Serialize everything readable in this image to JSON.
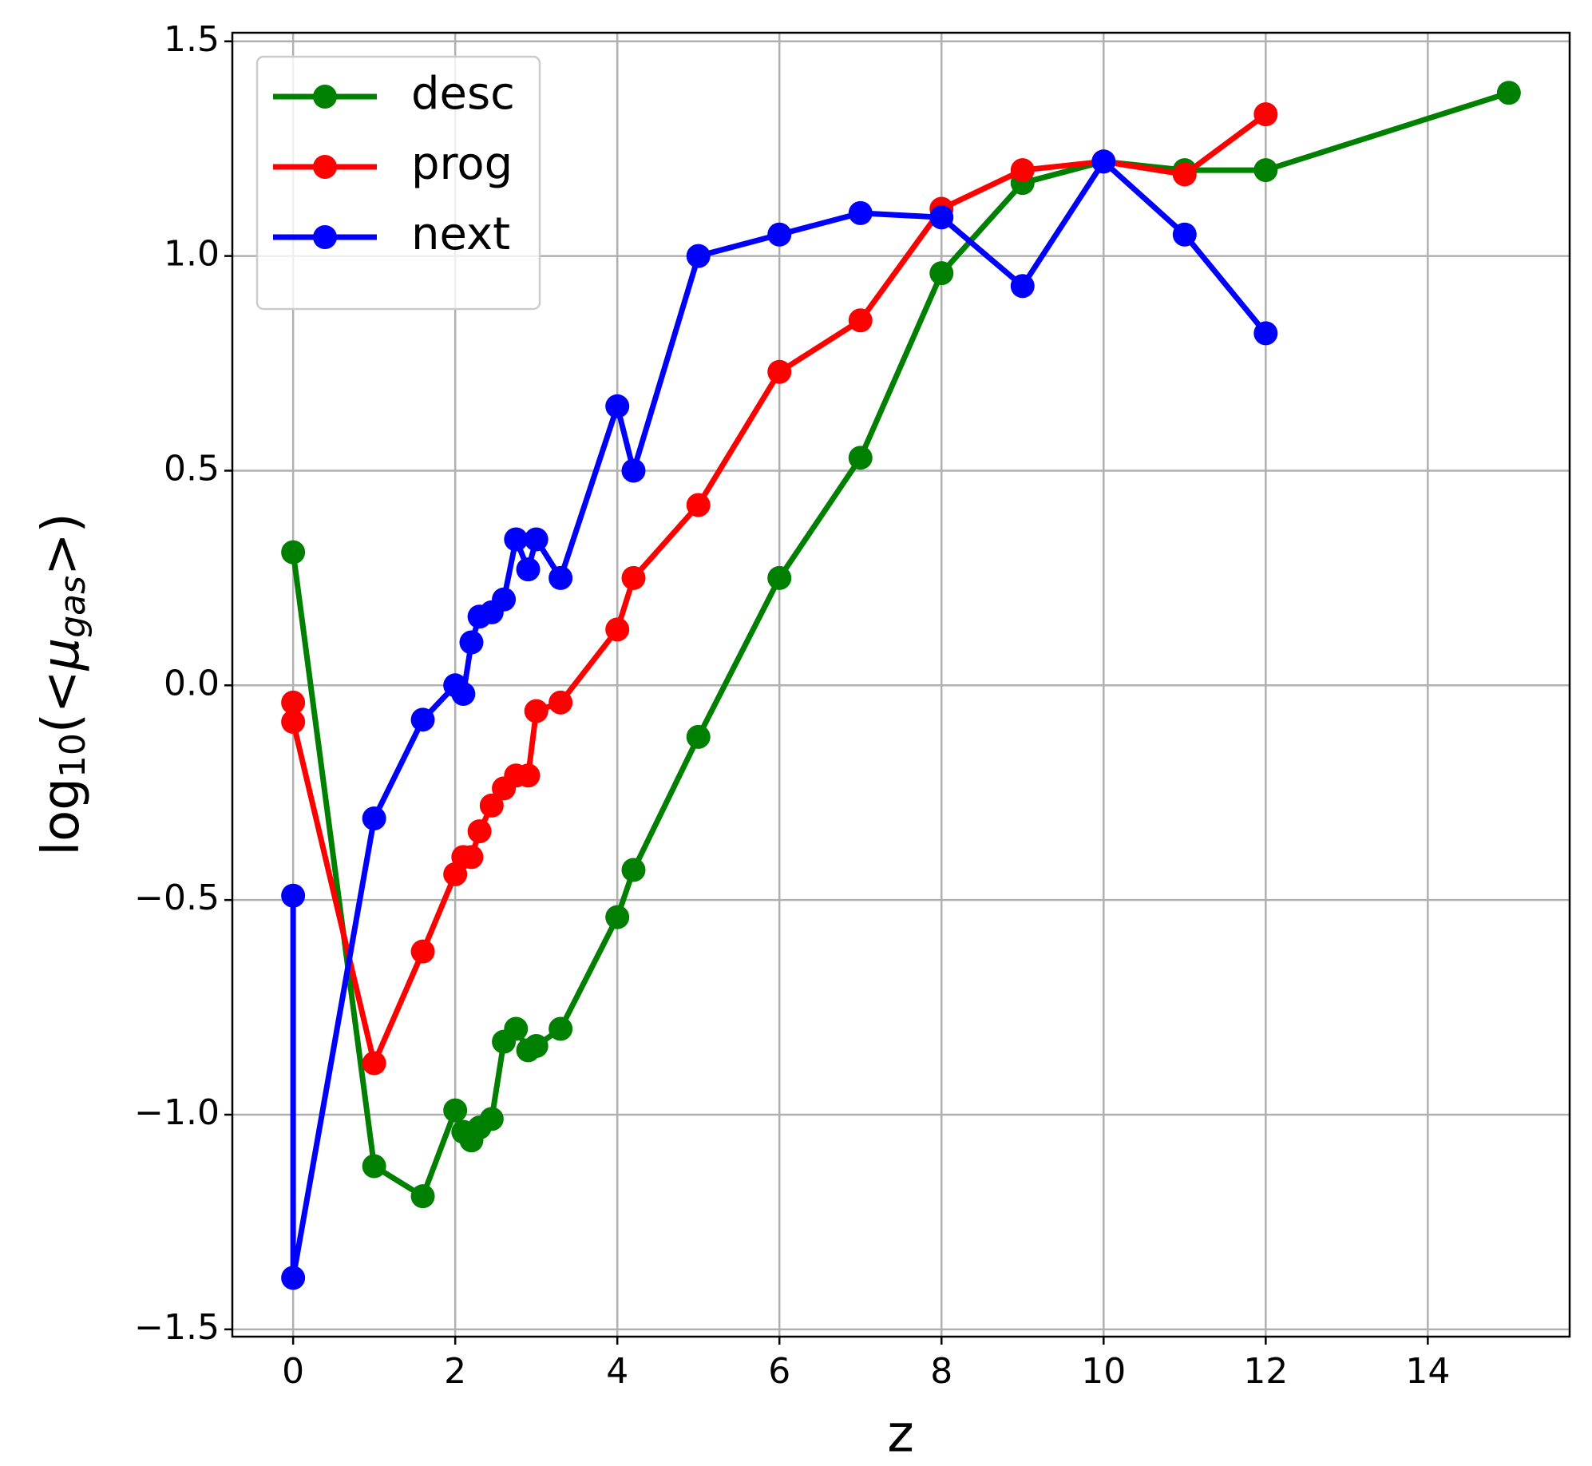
{
  "chart_data": {
    "type": "line",
    "xlabel": "z",
    "ylabel": [
      "log",
      "10",
      "(<",
      "μ",
      "gas",
      ">)"
    ],
    "xlim": [
      -0.75,
      15.75
    ],
    "ylim": [
      -1.517,
      1.52
    ],
    "xticks": [
      0,
      2,
      4,
      6,
      8,
      10,
      12,
      14
    ],
    "yticks": [
      {
        "value": -1.5,
        "label": "−1.5"
      },
      {
        "value": -1,
        "label": "−1.0"
      },
      {
        "value": -0.5,
        "label": "−0.5"
      },
      {
        "value": 0,
        "label": "0.0"
      },
      0.5,
      {
        "value": 1,
        "label": "1.0"
      },
      1.5
    ],
    "grid": true,
    "legend": "upper left",
    "series": [
      {
        "name": "desc",
        "color": "#008000",
        "x": [
          0,
          1,
          1.6,
          2,
          2.1,
          2.2,
          2.3,
          2.45,
          2.6,
          2.75,
          2.9,
          3.0,
          3.3,
          4.0,
          4.2,
          5,
          6,
          7,
          8,
          9,
          10,
          11,
          12,
          15
        ],
        "values": [
          0.31,
          -1.12,
          -1.19,
          -0.99,
          -1.04,
          -1.06,
          -1.03,
          -1.01,
          -0.83,
          -0.8,
          -0.85,
          -0.84,
          -0.8,
          -0.54,
          -0.43,
          -0.12,
          0.25,
          0.53,
          0.96,
          1.17,
          1.22,
          1.2,
          1.2,
          1.38
        ]
      },
      {
        "name": "prog",
        "color": "#ff0000",
        "x": [
          0,
          0,
          1,
          1.6,
          2,
          2.1,
          2.2,
          2.3,
          2.45,
          2.6,
          2.75,
          2.9,
          3.0,
          3.3,
          4.0,
          4.2,
          5,
          6,
          7,
          8,
          9,
          10,
          11,
          12
        ],
        "values": [
          -0.04,
          -0.085,
          -0.88,
          -0.62,
          -0.44,
          -0.4,
          -0.4,
          -0.34,
          -0.28,
          -0.24,
          -0.21,
          -0.21,
          -0.06,
          -0.04,
          0.13,
          0.25,
          0.42,
          0.73,
          0.85,
          1.11,
          1.2,
          1.22,
          1.19,
          1.33
        ]
      },
      {
        "name": "next",
        "color": "#0000ff",
        "x": [
          0,
          0,
          1,
          1.6,
          2,
          2.1,
          2.2,
          2.3,
          2.45,
          2.6,
          2.75,
          2.9,
          3.0,
          3.3,
          4.0,
          4.2,
          5,
          6,
          7,
          8,
          9,
          10,
          11,
          12
        ],
        "values": [
          -0.49,
          -1.38,
          -0.31,
          -0.08,
          0.0,
          -0.02,
          0.1,
          0.16,
          0.17,
          0.2,
          0.34,
          0.27,
          0.34,
          0.25,
          0.65,
          0.5,
          1.0,
          1.05,
          1.1,
          1.09,
          0.93,
          1.22,
          1.05,
          0.82
        ]
      }
    ]
  }
}
